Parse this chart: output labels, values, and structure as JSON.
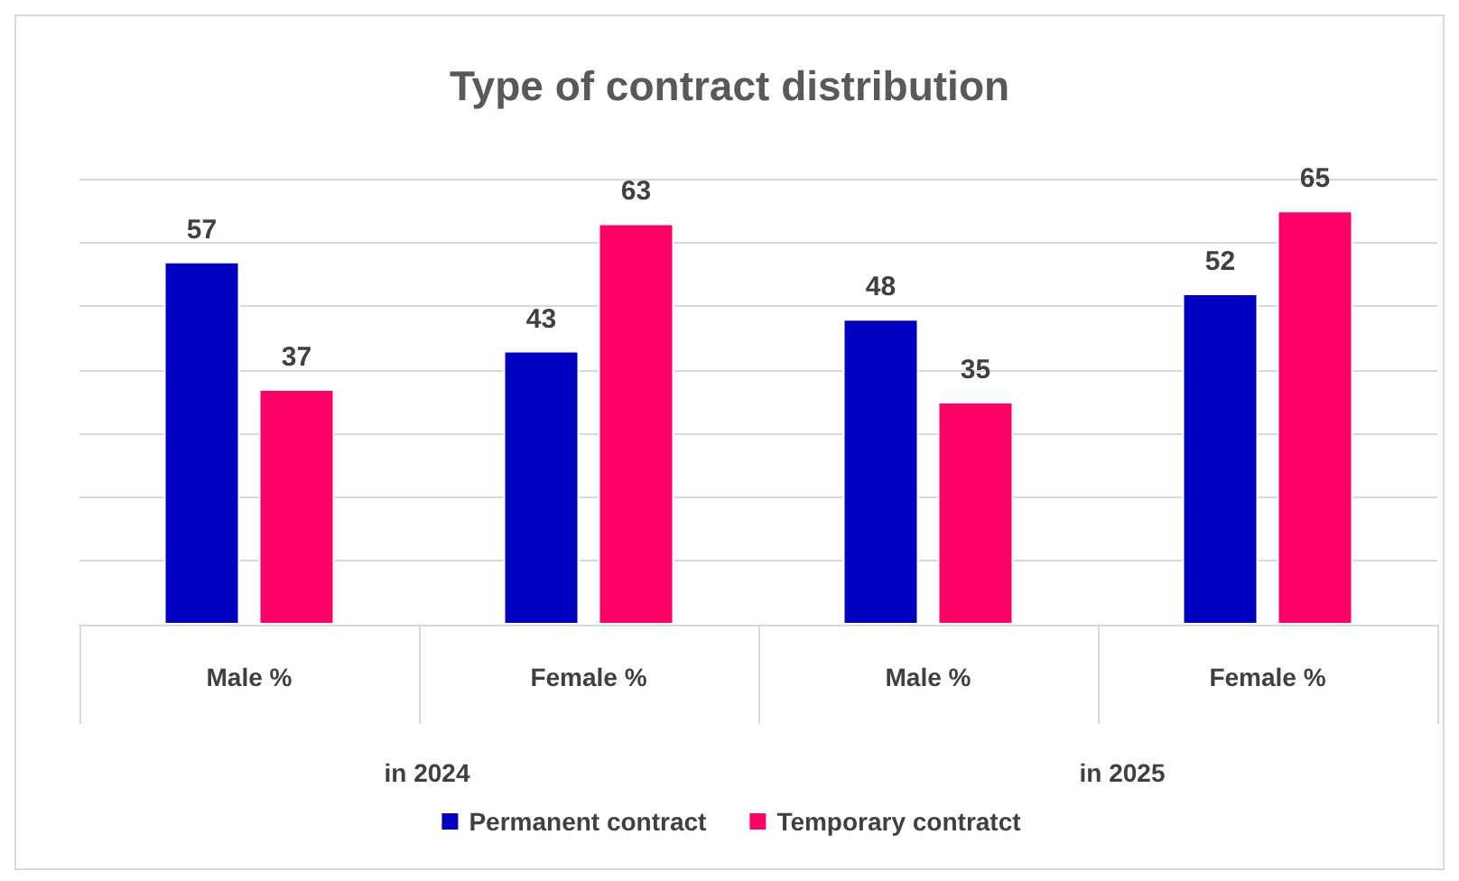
{
  "chart_data": {
    "type": "bar",
    "title": "Type of contract distribution",
    "categories": [
      "Male %",
      "Female %",
      "Male %",
      "Female %"
    ],
    "series": [
      {
        "name": "Permanent contract",
        "color": "#0000c0",
        "values": [
          57,
          43,
          48,
          52
        ]
      },
      {
        "name": "Temporary contratct",
        "color": "#ff0066",
        "values": [
          37,
          63,
          35,
          65
        ]
      }
    ],
    "annotations": [
      "in 2024",
      "in 2025"
    ],
    "ylim": [
      0,
      70
    ],
    "yticks": [
      {
        "value": 0,
        "label": null
      },
      {
        "value": 10,
        "label": null
      },
      {
        "value": 20,
        "label": null
      },
      {
        "value": 30,
        "label": null
      },
      {
        "value": 40,
        "label": null
      },
      {
        "value": 50,
        "label": null
      },
      {
        "value": 60,
        "label": null
      },
      {
        "value": 70,
        "label": null
      }
    ],
    "tick_labels": "x",
    "grid": "y",
    "legend": "bottom",
    "data_labels": true
  }
}
